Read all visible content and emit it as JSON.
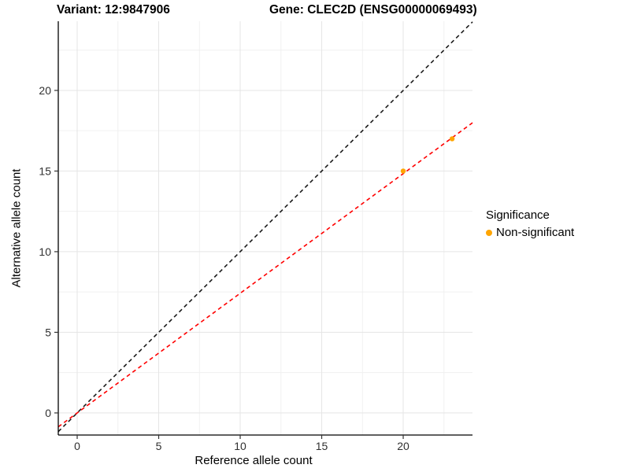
{
  "titles": {
    "variant": "Variant: 12:9847906",
    "gene": "Gene: CLEC2D (ENSG00000069493)"
  },
  "axes": {
    "x_label": "Reference allele count",
    "y_label": "Alternative allele count",
    "x_tick_labels": [
      "0",
      "5",
      "10",
      "15",
      "20"
    ],
    "y_tick_labels": [
      "0",
      "5",
      "10",
      "15",
      "20"
    ]
  },
  "legend": {
    "title": "Significance",
    "items": [
      {
        "label": "Non-significant",
        "marker": "point-marker-icon",
        "color": "#FFA500"
      }
    ]
  },
  "chart_data": {
    "type": "scatter",
    "title": "Variant: 12:9847906 / Gene: CLEC2D (ENSG00000069493)",
    "xlabel": "Reference allele count",
    "ylabel": "Alternative allele count",
    "series": [
      {
        "name": "Non-significant",
        "points": [
          {
            "x": 20,
            "y": 15
          },
          {
            "x": 23,
            "y": 17
          }
        ],
        "color": "#FFA500",
        "marker_radius": 3.2
      }
    ],
    "reference_lines": [
      {
        "name": "identity-line",
        "slope": 1.0,
        "intercept": 0,
        "color": "#1A1A1A",
        "style": "dashed"
      },
      {
        "name": "regression-line",
        "slope": 0.742,
        "intercept": 0,
        "color": "#FF0000",
        "style": "dashed"
      }
    ],
    "xlim": [
      -1.16,
      24.25
    ],
    "ylim": [
      -1.37,
      24.29
    ],
    "x_major_ticks": [
      0,
      5,
      10,
      15,
      20
    ],
    "y_major_ticks": [
      0,
      5,
      10,
      15,
      20
    ],
    "x_minor_gridlines": [
      2.5,
      7.5,
      12.5,
      17.5,
      22.5
    ],
    "y_minor_gridlines": [
      2.5,
      7.5,
      12.5,
      17.5,
      22.5
    ],
    "grid": "on",
    "legend_position": "right",
    "colors": {
      "grid_major": "#E5E5E5",
      "grid_minor": "#F0F0F0",
      "axis_line": "#000000",
      "tick_mark": "#333333",
      "tick_label": "#303030",
      "background": "#FFFFFF"
    }
  }
}
